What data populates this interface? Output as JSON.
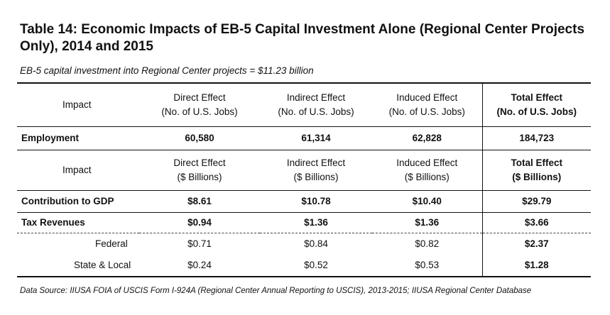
{
  "title": "Table 14: Economic Impacts of EB-5 Capital Investment Alone (Regional Center Projects Only), 2014 and 2015",
  "subtitle": "EB-5 capital investment into Regional Center projects = $11.23 billion",
  "table": {
    "jobs_header": {
      "impact": "Impact",
      "direct_1": "Direct Effect",
      "direct_2": "(No. of U.S. Jobs)",
      "indirect_1": "Indirect Effect",
      "indirect_2": "(No. of U.S. Jobs)",
      "induced_1": "Induced Effect",
      "induced_2": "(No. of U.S. Jobs)",
      "total_1": "Total Effect",
      "total_2": "(No. of U.S. Jobs)"
    },
    "employment": {
      "label": "Employment",
      "direct": "60,580",
      "indirect": "61,314",
      "induced": "62,828",
      "total": "184,723"
    },
    "dollars_header": {
      "impact": "Impact",
      "direct_1": "Direct Effect",
      "direct_2": "($ Billions)",
      "indirect_1": "Indirect Effect",
      "indirect_2": "($ Billions)",
      "induced_1": "Induced Effect",
      "induced_2": "($ Billions)",
      "total_1": "Total Effect",
      "total_2": "($ Billions)"
    },
    "gdp": {
      "label": "Contribution to GDP",
      "direct": "$8.61",
      "indirect": "$10.78",
      "induced": "$10.40",
      "total": "$29.79"
    },
    "tax": {
      "label": "Tax Revenues",
      "direct": "$0.94",
      "indirect": "$1.36",
      "induced": "$1.36",
      "total": "$3.66"
    },
    "federal": {
      "label": "Federal",
      "direct": "$0.71",
      "indirect": "$0.84",
      "induced": "$0.82",
      "total": "$2.37"
    },
    "state_local": {
      "label": "State & Local",
      "direct": "$0.24",
      "indirect": "$0.52",
      "induced": "$0.53",
      "total": "$1.28"
    }
  },
  "source": "Data Source: IIUSA FOIA of USCIS Form I-924A (Regional Center Annual Reporting to USCIS), 2013-2015; IIUSA Regional Center Database"
}
